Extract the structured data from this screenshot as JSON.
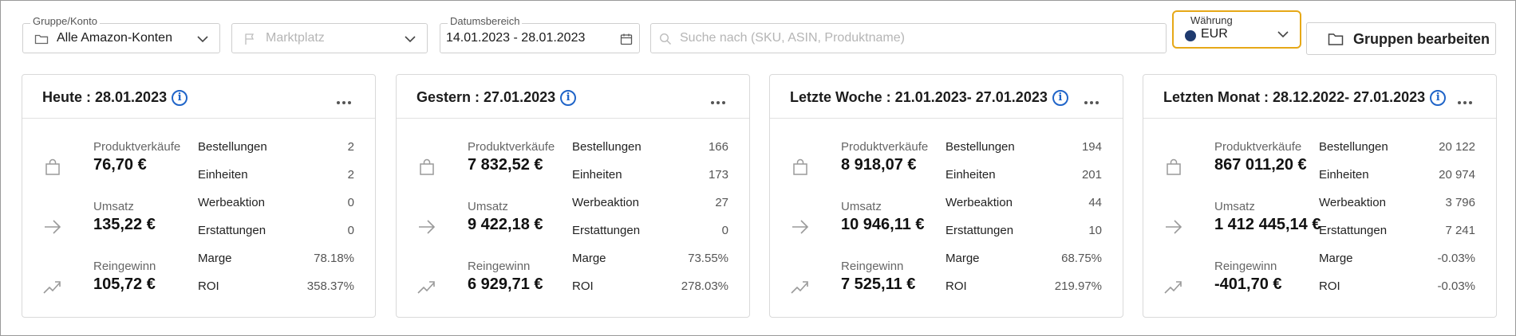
{
  "toolbar": {
    "group": {
      "label": "Gruppe/Konto",
      "value": "Alle Amazon-Konten",
      "icon": "folder-icon"
    },
    "marketplace": {
      "label": "",
      "placeholder": "Marktplatz",
      "icon": "flag-icon"
    },
    "daterange": {
      "label": "Datumsbereich",
      "value": "14.01.2023 - 28.01.2023",
      "icon": "calendar-icon"
    },
    "search": {
      "placeholder": "Suche nach (SKU, ASIN, Produktname)",
      "icon": "search-icon"
    },
    "currency": {
      "label": "Währung",
      "value": "EUR",
      "accent": "#e6a817",
      "dot_color": "#1e3a6e"
    },
    "edit_groups": {
      "label": "Gruppen bearbeiten",
      "icon": "folder-icon"
    }
  },
  "colors": {
    "info_blue": "#1f64c8",
    "border": "#d9d9d9"
  },
  "cards": [
    {
      "title": "Heute : 28.01.2023",
      "metrics": [
        {
          "label": "Produktverkäufe",
          "value": "76,70 €",
          "icon": "shopping-bag-icon"
        },
        {
          "label": "Umsatz",
          "value": "135,22 €",
          "icon": "arrow-right-icon"
        },
        {
          "label": "Reingewinn",
          "value": "105,72 €",
          "icon": "trend-up-icon"
        }
      ],
      "stats": [
        {
          "label": "Bestellungen",
          "value": "2"
        },
        {
          "label": "Einheiten",
          "value": "2"
        },
        {
          "label": "Werbeaktion",
          "value": "0"
        },
        {
          "label": "Erstattungen",
          "value": "0"
        },
        {
          "label": "Marge",
          "value": "78.18%"
        },
        {
          "label": "ROI",
          "value": "358.37%"
        }
      ]
    },
    {
      "title": "Gestern : 27.01.2023",
      "metrics": [
        {
          "label": "Produktverkäufe",
          "value": "7 832,52 €",
          "icon": "shopping-bag-icon"
        },
        {
          "label": "Umsatz",
          "value": "9 422,18 €",
          "icon": "arrow-right-icon"
        },
        {
          "label": "Reingewinn",
          "value": "6 929,71 €",
          "icon": "trend-up-icon"
        }
      ],
      "stats": [
        {
          "label": "Bestellungen",
          "value": "166"
        },
        {
          "label": "Einheiten",
          "value": "173"
        },
        {
          "label": "Werbeaktion",
          "value": "27"
        },
        {
          "label": "Erstattungen",
          "value": "0"
        },
        {
          "label": "Marge",
          "value": "73.55%"
        },
        {
          "label": "ROI",
          "value": "278.03%"
        }
      ]
    },
    {
      "title": "Letzte Woche : 21.01.2023- 27.01.2023",
      "metrics": [
        {
          "label": "Produktverkäufe",
          "value": "8 918,07 €",
          "icon": "shopping-bag-icon"
        },
        {
          "label": "Umsatz",
          "value": "10 946,11 €",
          "icon": "arrow-right-icon"
        },
        {
          "label": "Reingewinn",
          "value": "7 525,11 €",
          "icon": "trend-up-icon"
        }
      ],
      "stats": [
        {
          "label": "Bestellungen",
          "value": "194"
        },
        {
          "label": "Einheiten",
          "value": "201"
        },
        {
          "label": "Werbeaktion",
          "value": "44"
        },
        {
          "label": "Erstattungen",
          "value": "10"
        },
        {
          "label": "Marge",
          "value": "68.75%"
        },
        {
          "label": "ROI",
          "value": "219.97%"
        }
      ]
    },
    {
      "title": "Letzten Monat : 28.12.2022- 27.01.2023",
      "metrics": [
        {
          "label": "Produktverkäufe",
          "value": "867 011,20 €",
          "icon": "shopping-bag-icon"
        },
        {
          "label": "Umsatz",
          "value": "1 412 445,14 €",
          "icon": "arrow-right-icon"
        },
        {
          "label": "Reingewinn",
          "value": "-401,70 €",
          "icon": "trend-up-icon"
        }
      ],
      "stats": [
        {
          "label": "Bestellungen",
          "value": "20 122"
        },
        {
          "label": "Einheiten",
          "value": "20 974"
        },
        {
          "label": "Werbeaktion",
          "value": "3 796"
        },
        {
          "label": "Erstattungen",
          "value": "7 241"
        },
        {
          "label": "Marge",
          "value": "-0.03%"
        },
        {
          "label": "ROI",
          "value": "-0.03%"
        }
      ]
    }
  ]
}
